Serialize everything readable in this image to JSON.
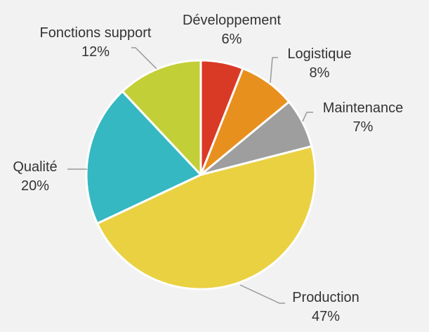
{
  "chart_data": {
    "type": "pie",
    "start_angle_deg": 0,
    "direction": "clockwise",
    "slices": [
      {
        "label": "Développement",
        "value": 6,
        "value_label": "6%",
        "color": "#d93a26"
      },
      {
        "label": "Logistique",
        "value": 8,
        "value_label": "8%",
        "color": "#e8901e"
      },
      {
        "label": "Maintenance",
        "value": 7,
        "value_label": "7%",
        "color": "#9e9e9e"
      },
      {
        "label": "Production",
        "value": 47,
        "value_label": "47%",
        "color": "#ead142"
      },
      {
        "label": "Qualité",
        "value": 20,
        "value_label": "20%",
        "color": "#35b8c2"
      },
      {
        "label": "Fonctions support",
        "value": 12,
        "value_label": "12%",
        "color": "#c3cf36"
      }
    ],
    "background": "#f2f2f2",
    "slice_border_color": "#ffffff",
    "leader_line_color": "#999999",
    "legend": "none"
  }
}
